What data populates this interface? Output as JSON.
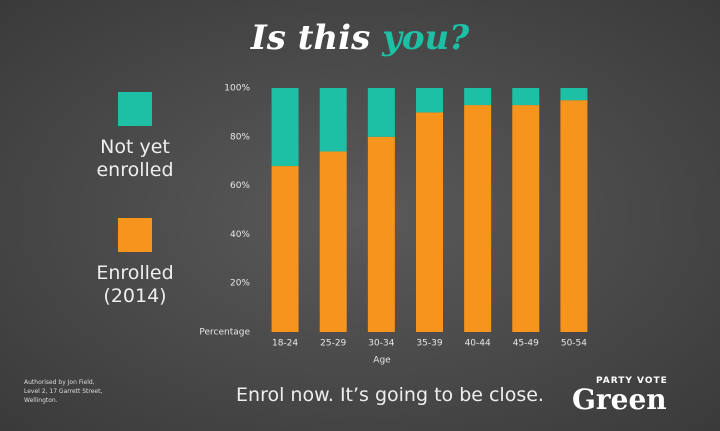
{
  "chart_data": {
    "type": "stacked_bar",
    "title": "Is this",
    "title_highlight": "you?",
    "categories": [
      "18-24",
      "25-29",
      "30-34",
      "35-39",
      "40-44",
      "45-49",
      "50-54"
    ],
    "series": [
      {
        "name": "Not yet enrolled",
        "color": "#1dbfa5",
        "values": [
          32,
          26,
          20,
          10,
          7,
          7,
          5
        ]
      },
      {
        "name": "Enrolled (2014)",
        "color": "#f7941d",
        "values": [
          68,
          74,
          80,
          90,
          93,
          93,
          95
        ]
      }
    ],
    "ylim": [
      0,
      100
    ],
    "yticks": [
      {
        "value": 20,
        "label": "20%"
      },
      {
        "value": 40,
        "label": "40%"
      },
      {
        "value": 60,
        "label": "60%"
      },
      {
        "value": 80,
        "label": "80%"
      },
      {
        "value": 100,
        "label": "100%"
      }
    ],
    "y_label": "Percentage",
    "x_label": "Age",
    "grid": false
  },
  "footer": {
    "message": "Enrol now. It’s going to be close.",
    "authorisation": "Authorised by Jon Field, Level 2, 17 Garrett Street, Wellington.",
    "logo_top": "PARTY VOTE",
    "logo_main": "Green"
  }
}
